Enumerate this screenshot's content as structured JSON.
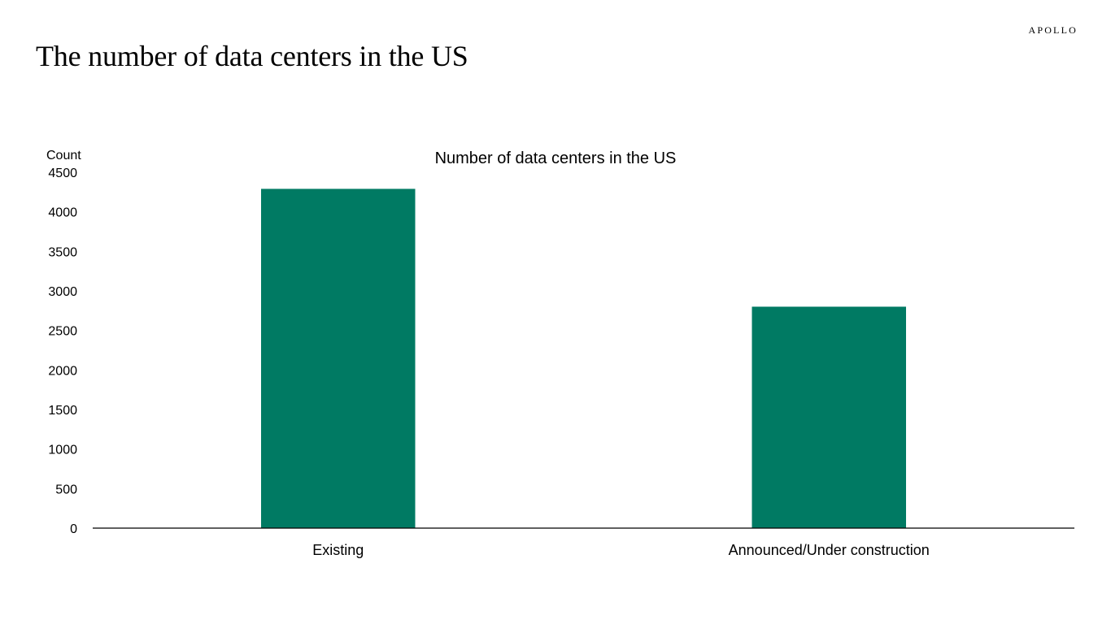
{
  "page": {
    "title": "The number of data centers in the US",
    "brand": "APOLLO"
  },
  "chart_data": {
    "type": "bar",
    "title": "Number of data centers in the US",
    "ylabel": "Count",
    "xlabel": "",
    "categories": [
      "Existing",
      "Announced/Under construction"
    ],
    "values": [
      4290,
      2800
    ],
    "ylim": [
      0,
      4500
    ],
    "yticks": [
      0,
      500,
      1000,
      1500,
      2000,
      2500,
      3000,
      3500,
      4000,
      4500
    ],
    "grid": false,
    "legend": "none",
    "colors": {
      "bar": "#007A63",
      "axis": "#000000"
    }
  }
}
